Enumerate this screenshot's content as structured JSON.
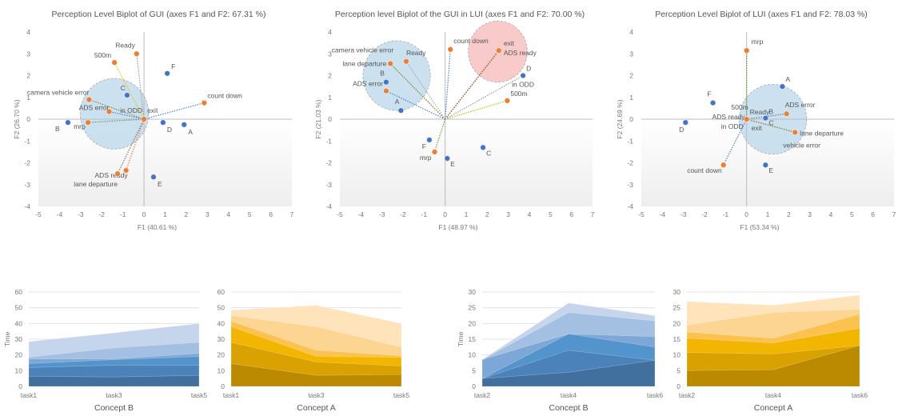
{
  "biplots": [
    {
      "title": "Perception Level Biplot of GUI (axes F1 and F2: 67.31 %)",
      "xlabel": "F1 (40.61 %)",
      "ylabel": "F2 (26.70 %)",
      "xlim": [
        -5,
        7
      ],
      "ylim": [
        -4,
        4
      ],
      "xticks": [
        "-5",
        "-4",
        "-3",
        "-2",
        "-1",
        "0",
        "1",
        "2",
        "3",
        "4",
        "5",
        "6",
        "7"
      ],
      "yticks": [
        "-4",
        "-3",
        "-2",
        "-1",
        "0",
        "1",
        "2",
        "3",
        "4"
      ],
      "observations": [
        {
          "label": "B",
          "x": -3.6,
          "y": -0.15
        },
        {
          "label": "C",
          "x": -0.8,
          "y": 1.1
        },
        {
          "label": "F",
          "x": 1.1,
          "y": 2.1
        },
        {
          "label": "D",
          "x": 0.9,
          "y": -0.15
        },
        {
          "label": "A",
          "x": 1.9,
          "y": -0.25
        },
        {
          "label": "E",
          "x": 0.45,
          "y": -2.65
        }
      ],
      "variables": [
        {
          "label": "Ready",
          "x": -0.35,
          "y": 3.0,
          "line": "#999999"
        },
        {
          "label": "500m",
          "x": -1.4,
          "y": 2.6,
          "line": "#f2c200"
        },
        {
          "label": "camera vehicle error",
          "x": -2.6,
          "y": 0.9,
          "line": "#8a8a3a"
        },
        {
          "label": "ADS error",
          "x": -1.65,
          "y": 0.35,
          "line": "#4a7fc0"
        },
        {
          "label": "mrp",
          "x": -2.65,
          "y": -0.15,
          "line": "#5a9a7a"
        },
        {
          "label": "in ODD",
          "x": 0,
          "y": 0,
          "line": "#999999"
        },
        {
          "label": "exit",
          "x": 0,
          "y": 0,
          "line": "#999999"
        },
        {
          "label": "count down",
          "x": 2.85,
          "y": 0.75,
          "line": "#4a7fc0"
        },
        {
          "label": "ADS ready",
          "x": -0.85,
          "y": -2.35,
          "line": "#ed7d31"
        },
        {
          "label": "lane departure",
          "x": -1.25,
          "y": -2.5,
          "line": "#777777"
        }
      ],
      "circles": [
        {
          "x": -1.4,
          "y": 0.25,
          "r": 1.62,
          "color": "#b9d7ea"
        }
      ]
    },
    {
      "title": "Perception level Biplot of the GUI in LUI (axes F1 and F2: 70.00 %)",
      "xlabel": "F1 (48.97 %)",
      "ylabel": "F2 (21.03 %)",
      "xlim": [
        -5,
        7
      ],
      "ylim": [
        -4,
        4
      ],
      "xticks": [
        "-5",
        "-4",
        "-3",
        "-2",
        "-1",
        "0",
        "1",
        "2",
        "3",
        "4",
        "5",
        "6",
        "7"
      ],
      "yticks": [
        "-4",
        "-3",
        "-2",
        "-1",
        "0",
        "1",
        "2",
        "3",
        "4"
      ],
      "observations": [
        {
          "label": "B",
          "x": -2.8,
          "y": 1.7
        },
        {
          "label": "A",
          "x": -2.1,
          "y": 0.4
        },
        {
          "label": "F",
          "x": -0.75,
          "y": -0.95
        },
        {
          "label": "E",
          "x": 0.1,
          "y": -1.8
        },
        {
          "label": "C",
          "x": 1.8,
          "y": -1.3
        },
        {
          "label": "D",
          "x": 3.7,
          "y": 2.0
        }
      ],
      "variables": [
        {
          "label": "count down",
          "x": 0.25,
          "y": 3.2,
          "line": "#4a7fc0"
        },
        {
          "label": "exit",
          "x": 2.55,
          "y": 3.15,
          "line": "#a0522d"
        },
        {
          "label": "ADS ready",
          "x": 2.55,
          "y": 3.15,
          "line": "#a0522d"
        },
        {
          "label": "camera vehicle error",
          "x": -2.6,
          "y": 2.55,
          "line": "#8a8a3a"
        },
        {
          "label": "lane departure",
          "x": -2.6,
          "y": 2.55,
          "line": "#8a8a3a"
        },
        {
          "label": "Ready",
          "x": -1.85,
          "y": 2.65,
          "line": "#aaaaaa"
        },
        {
          "label": "ADS error",
          "x": -2.8,
          "y": 1.3,
          "line": "#4a7fc0"
        },
        {
          "label": "in ODD",
          "x": 3.7,
          "y": 2.0,
          "line": "#999999"
        },
        {
          "label": "500m",
          "x": 2.95,
          "y": 0.85,
          "line": "#b5c200"
        },
        {
          "label": "mrp",
          "x": -0.5,
          "y": -1.5,
          "line": "#6a9a3a"
        }
      ],
      "circles": [
        {
          "x": -2.3,
          "y": 2.0,
          "r": 1.6,
          "color": "#b9d7ea"
        },
        {
          "x": 2.5,
          "y": 3.1,
          "r": 1.4,
          "color": "#f7b8b8"
        }
      ]
    },
    {
      "title": "Perception Level Biplot of LUI (axes F1 and F2: 78.03 %)",
      "xlabel": "F1 (53.34 %)",
      "ylabel": "F2 (24.69 %)",
      "xlim": [
        -5,
        7
      ],
      "ylim": [
        -4,
        4
      ],
      "xticks": [
        "-5",
        "-4",
        "-3",
        "-2",
        "-1",
        "0",
        "1",
        "2",
        "3",
        "4",
        "5",
        "6",
        "7"
      ],
      "yticks": [
        "-4",
        "-3",
        "-2",
        "-1",
        "0",
        "1",
        "2",
        "3",
        "4"
      ],
      "observations": [
        {
          "label": "A",
          "x": 1.7,
          "y": 1.5
        },
        {
          "label": "F",
          "x": -1.6,
          "y": 0.75
        },
        {
          "label": "D",
          "x": -2.9,
          "y": -0.15
        },
        {
          "label": "B",
          "x": 0.9,
          "y": 0.05
        },
        {
          "label": "C",
          "x": 0.9,
          "y": 0.05
        },
        {
          "label": "E",
          "x": 0.9,
          "y": -2.1
        }
      ],
      "variables": [
        {
          "label": "mrp",
          "x": 0,
          "y": 3.15,
          "line": "#6a9a3a"
        },
        {
          "label": "ADS error",
          "x": 1.9,
          "y": 0.25,
          "line": "#4a7fc0"
        },
        {
          "label": "lane departure",
          "x": 2.3,
          "y": -0.6,
          "line": "#8a8a3a"
        },
        {
          "label": "vehicle error",
          "x": 2.3,
          "y": -0.6,
          "line": "#8a8a3a"
        },
        {
          "label": "count down",
          "x": -1.1,
          "y": -2.1,
          "line": "#4a7fc0"
        },
        {
          "label": "500m",
          "x": 0,
          "y": 0,
          "line": "#999999"
        },
        {
          "label": "Ready",
          "x": 0,
          "y": 0,
          "line": "#999999"
        },
        {
          "label": "ADS ready",
          "x": 0,
          "y": 0,
          "line": "#999999"
        },
        {
          "label": "in ODD",
          "x": 0,
          "y": 0,
          "line": "#999999"
        },
        {
          "label": "exit",
          "x": 0,
          "y": 0,
          "line": "#999999"
        }
      ],
      "circles": [
        {
          "x": 1.25,
          "y": 0.0,
          "r": 1.6,
          "color": "#b9d7ea"
        }
      ]
    }
  ],
  "chart_data": [
    {
      "type": "area",
      "stacked": true,
      "title": "Concept B",
      "xlabel": "Concept B",
      "ylabel": "Time",
      "categories": [
        "task1",
        "task3",
        "task5"
      ],
      "ylim": [
        0,
        60
      ],
      "yticks": [
        "0",
        "10",
        "20",
        "30",
        "40",
        "50",
        "60"
      ],
      "series": [
        {
          "values": [
            6.5,
            6,
            7
          ],
          "color": "#41709f"
        },
        {
          "values": [
            5.5,
            7.5,
            6.5
          ],
          "color": "#4a82b9"
        },
        {
          "values": [
            2.5,
            3.5,
            5.5
          ],
          "color": "#5494cc"
        },
        {
          "values": [
            3,
            0.5,
            2
          ],
          "color": "#7ca7d6"
        },
        {
          "values": [
            1,
            7,
            7
          ],
          "color": "#a3bfe2"
        },
        {
          "values": [
            10,
            9.5,
            12
          ],
          "color": "#c4d5ec"
        }
      ]
    },
    {
      "type": "area",
      "stacked": true,
      "title": "Concept A",
      "xlabel": "Concept A",
      "ylabel": "",
      "categories": [
        "task1",
        "task3",
        "task5"
      ],
      "ylim": [
        0,
        60
      ],
      "yticks": [
        "0",
        "10",
        "20",
        "30",
        "40",
        "50",
        "60"
      ],
      "series": [
        {
          "values": [
            14.5,
            7,
            7.5
          ],
          "color": "#bb8a00"
        },
        {
          "values": [
            13.5,
            8.5,
            5.5
          ],
          "color": "#d9a200"
        },
        {
          "values": [
            10,
            3.5,
            5.5
          ],
          "color": "#f2b500"
        },
        {
          "values": [
            3.5,
            4,
            1
          ],
          "color": "#fbc250"
        },
        {
          "values": [
            3.5,
            15,
            5.5
          ],
          "color": "#fdd593"
        },
        {
          "values": [
            3.5,
            13.5,
            15
          ],
          "color": "#fee3bb"
        }
      ]
    },
    {
      "type": "area",
      "stacked": true,
      "title": "Concept B",
      "xlabel": "Concept B",
      "ylabel": "Time",
      "categories": [
        "task2",
        "task4",
        "task6"
      ],
      "ylim": [
        0,
        30
      ],
      "yticks": [
        "0",
        "5",
        "10",
        "15",
        "20",
        "25",
        "30"
      ],
      "series": [
        {
          "values": [
            2.5,
            4.5,
            8.3
          ],
          "color": "#41709f"
        },
        {
          "values": [
            0,
            7,
            0
          ],
          "color": "#4a82b9"
        },
        {
          "values": [
            0,
            5.2,
            4.2
          ],
          "color": "#5494cc"
        },
        {
          "values": [
            6,
            0,
            3.3
          ],
          "color": "#7ca7d6"
        },
        {
          "values": [
            0,
            6.8,
            5
          ],
          "color": "#a3bfe2"
        },
        {
          "values": [
            0,
            3,
            1.7
          ],
          "color": "#c4d5ec"
        }
      ]
    },
    {
      "type": "area",
      "stacked": true,
      "title": "Concept A",
      "xlabel": "Concept A",
      "ylabel": "",
      "categories": [
        "task2",
        "task4",
        "task6"
      ],
      "ylim": [
        0,
        30
      ],
      "yticks": [
        "0",
        "5",
        "10",
        "15",
        "20",
        "25",
        "30"
      ],
      "series": [
        {
          "values": [
            5,
            5.3,
            13
          ],
          "color": "#bb8a00"
        },
        {
          "values": [
            5.8,
            5,
            0
          ],
          "color": "#d9a200"
        },
        {
          "values": [
            4.5,
            3.5,
            5.5
          ],
          "color": "#f2b500"
        },
        {
          "values": [
            2,
            1.5,
            4.5
          ],
          "color": "#fbc250"
        },
        {
          "values": [
            2.2,
            8.2,
            1.5
          ],
          "color": "#fdd593"
        },
        {
          "values": [
            7.5,
            2.3,
            4.5
          ],
          "color": "#fee3bb"
        }
      ]
    }
  ],
  "colors": {
    "observation": "#4472c4",
    "variable": "#ed7d31"
  }
}
